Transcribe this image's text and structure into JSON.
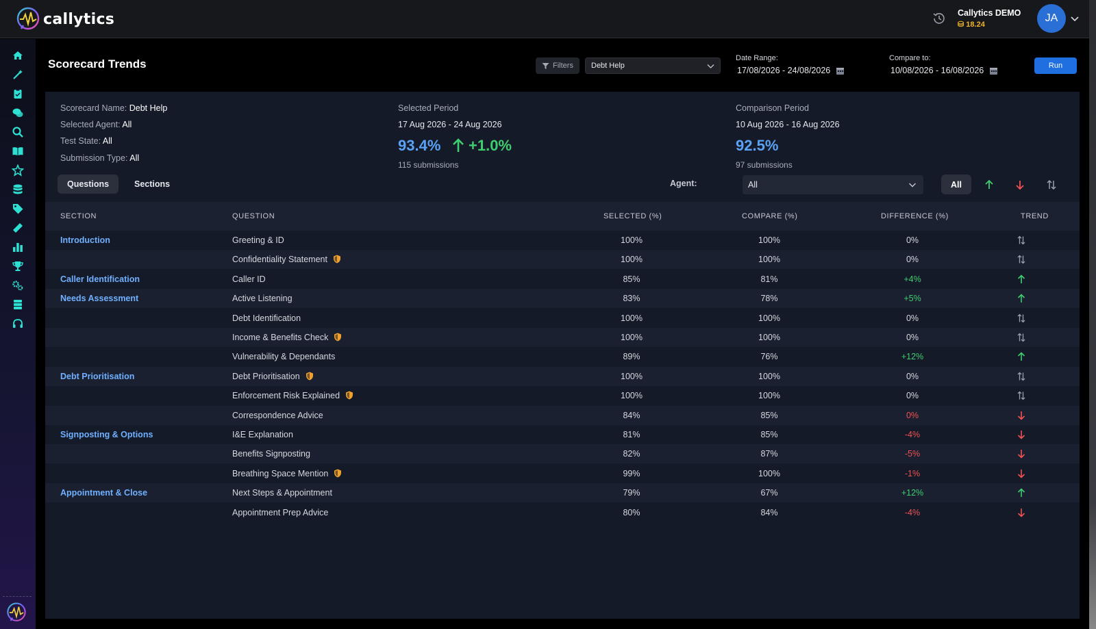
{
  "app": {
    "name": "callytics"
  },
  "account": {
    "name": "Callytics DEMO",
    "credits": "18.24",
    "initials": "JA"
  },
  "header": {
    "title": "Scorecard Trends",
    "filters_label": "Filters",
    "scorecard_selected": "Debt Help",
    "date_range_label": "Date Range:",
    "date_range_value": "17/08/2026 - 24/08/2026",
    "compare_label": "Compare to:",
    "compare_value": "10/08/2026 - 16/08/2026",
    "run_label": "Run"
  },
  "summary": {
    "scorecard_name_label": "Scorecard Name:",
    "scorecard_name": "Debt Help",
    "selected_agent_label": "Selected Agent:",
    "selected_agent": "All",
    "test_state_label": "Test State:",
    "test_state": "All",
    "submission_type_label": "Submission Type:",
    "submission_type": "All",
    "selected_period": {
      "label": "Selected Period",
      "dates": "17 Aug 2026 - 24 Aug 2026",
      "score": "93.4%",
      "delta": "+1.0%",
      "submissions": "115 submissions"
    },
    "comparison_period": {
      "label": "Comparison Period",
      "dates": "10 Aug 2026 - 16 Aug 2026",
      "score": "92.5%",
      "submissions": "97 submissions"
    }
  },
  "tabs": [
    {
      "label": "Questions",
      "active": true
    },
    {
      "label": "Sections",
      "active": false
    }
  ],
  "agent_filter": {
    "label": "Agent:",
    "value": "All",
    "all_label": "All"
  },
  "table": {
    "headers": [
      "SECTION",
      "QUESTION",
      "SELECTED (%)",
      "COMPARE (%)",
      "DIFFERENCE (%)",
      "TREND"
    ],
    "rows": [
      {
        "section": "Introduction",
        "question": "Greeting & ID",
        "critical": false,
        "selected": "100%",
        "compare": "100%",
        "difference": "0%",
        "diff_tone": "neutral",
        "trend": "same"
      },
      {
        "section": "",
        "question": "Confidentiality Statement",
        "critical": true,
        "selected": "100%",
        "compare": "100%",
        "difference": "0%",
        "diff_tone": "neutral",
        "trend": "same"
      },
      {
        "section": "Caller Identification",
        "question": "Caller ID",
        "critical": false,
        "selected": "85%",
        "compare": "81%",
        "difference": "+4%",
        "diff_tone": "pos",
        "trend": "up"
      },
      {
        "section": "Needs Assessment",
        "question": "Active Listening",
        "critical": false,
        "selected": "83%",
        "compare": "78%",
        "difference": "+5%",
        "diff_tone": "pos",
        "trend": "up"
      },
      {
        "section": "",
        "question": "Debt Identification",
        "critical": false,
        "selected": "100%",
        "compare": "100%",
        "difference": "0%",
        "diff_tone": "neutral",
        "trend": "same"
      },
      {
        "section": "",
        "question": "Income & Benefits Check",
        "critical": true,
        "selected": "100%",
        "compare": "100%",
        "difference": "0%",
        "diff_tone": "neutral",
        "trend": "same"
      },
      {
        "section": "",
        "question": "Vulnerability & Dependants",
        "critical": false,
        "selected": "89%",
        "compare": "76%",
        "difference": "+12%",
        "diff_tone": "pos",
        "trend": "up"
      },
      {
        "section": "Debt Prioritisation",
        "question": "Debt Prioritisation",
        "critical": true,
        "selected": "100%",
        "compare": "100%",
        "difference": "0%",
        "diff_tone": "neutral",
        "trend": "same"
      },
      {
        "section": "",
        "question": "Enforcement Risk Explained",
        "critical": true,
        "selected": "100%",
        "compare": "100%",
        "difference": "0%",
        "diff_tone": "neutral",
        "trend": "same"
      },
      {
        "section": "",
        "question": "Correspondence Advice",
        "critical": false,
        "selected": "84%",
        "compare": "85%",
        "difference": "0%",
        "diff_tone": "neg",
        "trend": "down"
      },
      {
        "section": "Signposting & Options",
        "question": "I&E Explanation",
        "critical": false,
        "selected": "81%",
        "compare": "85%",
        "difference": "-4%",
        "diff_tone": "neg",
        "trend": "down"
      },
      {
        "section": "",
        "question": "Benefits Signposting",
        "critical": false,
        "selected": "82%",
        "compare": "87%",
        "difference": "-5%",
        "diff_tone": "neg",
        "trend": "down"
      },
      {
        "section": "",
        "question": "Breathing Space Mention",
        "critical": true,
        "selected": "99%",
        "compare": "100%",
        "difference": "-1%",
        "diff_tone": "neg",
        "trend": "down"
      },
      {
        "section": "Appointment & Close",
        "question": "Next Steps & Appointment",
        "critical": false,
        "selected": "79%",
        "compare": "67%",
        "difference": "+12%",
        "diff_tone": "pos",
        "trend": "up"
      },
      {
        "section": "",
        "question": "Appointment Prep Advice",
        "critical": false,
        "selected": "80%",
        "compare": "84%",
        "difference": "-4%",
        "diff_tone": "neg",
        "trend": "down"
      }
    ]
  },
  "colors": {
    "accent": "#1f6fe0",
    "positive": "#3fce6f",
    "negative": "#f05252",
    "section_link": "#6fb0ff",
    "critical": "#f0a12b"
  },
  "sidebar_icons": [
    "home-icon",
    "magic-wand-icon",
    "clipboard-icon",
    "chat-icon",
    "search-icon",
    "book-icon",
    "star-icon",
    "database-icon",
    "tag-icon",
    "ruler-icon",
    "bar-chart-icon",
    "trophy-icon",
    "cogs-icon",
    "layers-icon",
    "headset-icon"
  ]
}
